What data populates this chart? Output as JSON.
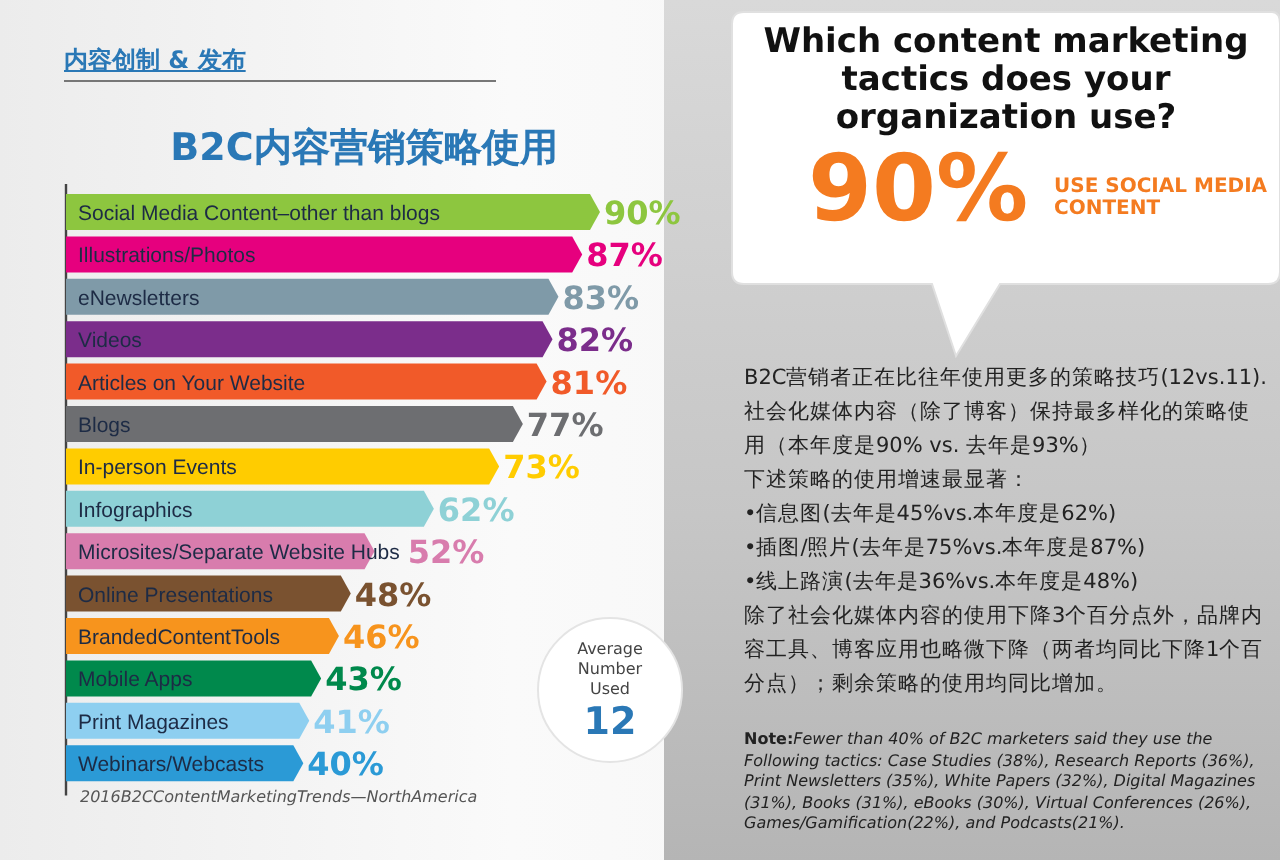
{
  "chart_data": {
    "type": "bar",
    "orientation": "horizontal",
    "title": "B2C内容营销策略使用",
    "categories": [
      "Social Media Content–other than blogs",
      "Illustrations/Photos",
      "eNewsletters",
      "Videos",
      "Articles on Your Website",
      "Blogs",
      "In-person Events",
      "Infographics",
      "Microsites/Separate Website Hubs",
      "Online Presentations",
      "BrandedContentTools",
      "Mobile Apps",
      "Print Magazines",
      "Webinars/Webcasts"
    ],
    "values": [
      90,
      87,
      83,
      82,
      81,
      77,
      73,
      62,
      52,
      48,
      46,
      43,
      41,
      40
    ],
    "value_labels": [
      "90%",
      "87%",
      "83%",
      "82%",
      "81%",
      "77%",
      "73%",
      "62%",
      "52%",
      "48%",
      "46%",
      "43%",
      "41%",
      "40%"
    ],
    "colors": [
      "#8dc63f",
      "#e6007e",
      "#7f9aa8",
      "#7b2d8b",
      "#f15a29",
      "#6d6e71",
      "#ffcc00",
      "#8ed1d6",
      "#d87cad",
      "#7a5230",
      "#f7941d",
      "#00894c",
      "#8ecff0",
      "#2b9ad6"
    ],
    "annotations": [
      "内容创制 & 发布",
      "Which content marketing tactics does your organization use?",
      "90%",
      "USE SOCIAL MEDIA CONTENT",
      "Average Number Used",
      "12",
      "B2C营销者正在比往年使用更多的策略技巧(12vs.11).",
      "社会化媒体内容（除了博客）保持最多样化的策略使用（本年度是90% vs. 去年是93%）",
      "下述策略的使用增速最显著：",
      "•信息图(去年是45%vs.本年度是62%)",
      "•插图/照片(去年是75%vs.本年度是87%)",
      "•线上路演(去年是36%vs.本年度是48%)",
      "除了社会化媒体内容的使用下降3个百分点外，品牌内容工具、博客应用也略微下降（两者均同比下降1个百分点）；剩余策略的使用均同比增加。",
      "Note:",
      "Fewer than 40% of B2C marketers said they use the Following tactics: Case Studies (38%), Research Reports (36%), Print Newsletters (35%), White Papers (32%), Digital Magazines (31%), Books (31%), eBooks (30%), Virtual Conferences (26%), Games/Gamification(22%), and Podcasts(21%).",
      "2016B2CContentMarketingTrends—NorthAmerica"
    ]
  }
}
